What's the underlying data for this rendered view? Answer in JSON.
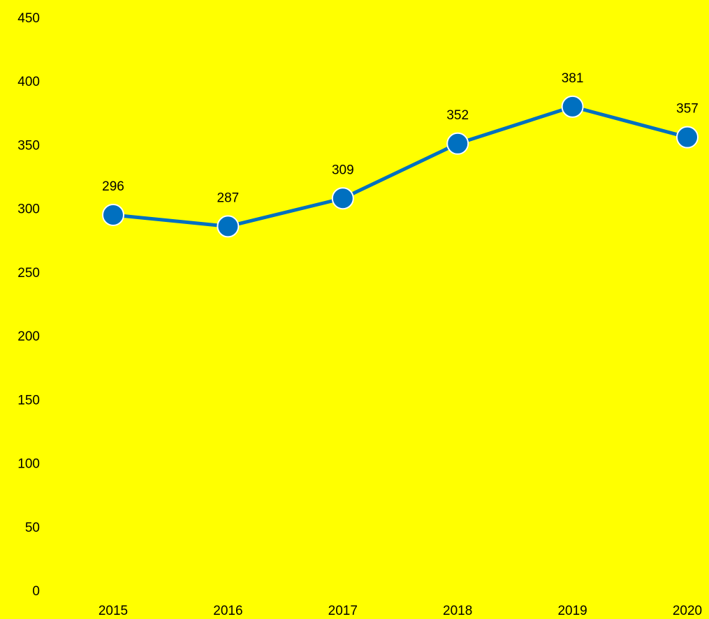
{
  "chart_data": {
    "type": "line",
    "categories": [
      "2015",
      "2016",
      "2017",
      "2018",
      "2019",
      "2020"
    ],
    "series": [
      {
        "name": "Series 1",
        "color": "#0070c0",
        "values": [
          296,
          287,
          309,
          352,
          381,
          357
        ]
      }
    ],
    "ylim": [
      0,
      450
    ],
    "yticks": [
      0,
      50,
      100,
      150,
      200,
      250,
      300,
      350,
      400,
      450
    ],
    "grid": false,
    "legend": false,
    "background": "#ffff00"
  }
}
